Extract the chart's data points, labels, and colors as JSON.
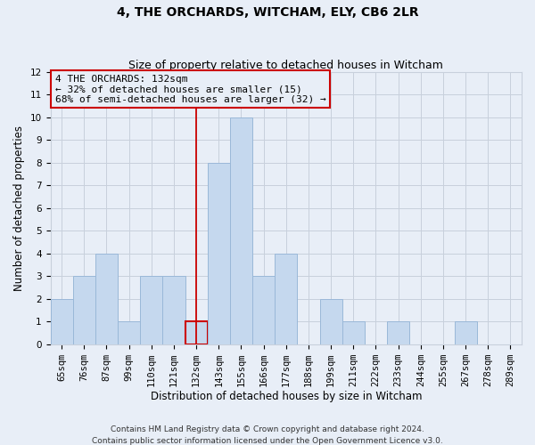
{
  "title": "4, THE ORCHARDS, WITCHAM, ELY, CB6 2LR",
  "subtitle": "Size of property relative to detached houses in Witcham",
  "xlabel": "Distribution of detached houses by size in Witcham",
  "ylabel": "Number of detached properties",
  "categories": [
    "65sqm",
    "76sqm",
    "87sqm",
    "99sqm",
    "110sqm",
    "121sqm",
    "132sqm",
    "143sqm",
    "155sqm",
    "166sqm",
    "177sqm",
    "188sqm",
    "199sqm",
    "211sqm",
    "222sqm",
    "233sqm",
    "244sqm",
    "255sqm",
    "267sqm",
    "278sqm",
    "289sqm"
  ],
  "values": [
    2,
    3,
    4,
    1,
    3,
    3,
    1,
    8,
    10,
    3,
    4,
    0,
    2,
    1,
    0,
    1,
    0,
    0,
    1,
    0,
    0
  ],
  "bar_color": "#c5d8ee",
  "bar_edge_color": "#9ab8d8",
  "highlight_index": 6,
  "highlight_bar_edge": "#cc0000",
  "highlight_line_color": "#cc0000",
  "ylim": [
    0,
    12
  ],
  "yticks": [
    0,
    1,
    2,
    3,
    4,
    5,
    6,
    7,
    8,
    9,
    10,
    11,
    12
  ],
  "annotation_line1": "4 THE ORCHARDS: 132sqm",
  "annotation_line2": "← 32% of detached houses are smaller (15)",
  "annotation_line3": "68% of semi-detached houses are larger (32) →",
  "annotation_box_edge": "#cc0000",
  "footnote1": "Contains HM Land Registry data © Crown copyright and database right 2024.",
  "footnote2": "Contains public sector information licensed under the Open Government Licence v3.0.",
  "bg_color": "#e8eef7",
  "grid_color": "#c8d0dc",
  "title_fontsize": 10,
  "subtitle_fontsize": 9,
  "tick_fontsize": 7.5,
  "label_fontsize": 8.5,
  "annotation_fontsize": 8,
  "footnote_fontsize": 6.5
}
